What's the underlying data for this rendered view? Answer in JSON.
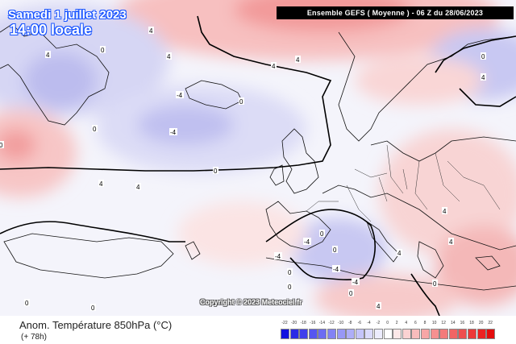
{
  "header": {
    "date": "Samedi 1 juillet 2023",
    "time": "14:00 locale",
    "run_info": "Ensemble GEFS  ( Moyenne )  - 06 Z du 28/06/2023"
  },
  "copyright": "Copyright © 2023 Meteociel.fr",
  "footer": {
    "title": "Anom. Température 850hPa (°C)",
    "subtitle": "(+ 78h)"
  },
  "legend": {
    "ticks": [
      "-22",
      "-20",
      "-18",
      "-16",
      "-14",
      "-12",
      "-10",
      "-8",
      "-6",
      "-4",
      "-2",
      "0",
      "2",
      "4",
      "6",
      "8",
      "10",
      "12",
      "14",
      "16",
      "18",
      "20",
      "22"
    ],
    "colors": [
      "#1212e0",
      "#2a2ae6",
      "#4040ec",
      "#5656f0",
      "#6c6cf2",
      "#8282f4",
      "#9898f6",
      "#aeaef8",
      "#c4c4fa",
      "#dadafc",
      "#ececfd",
      "#ffffff",
      "#fde8e8",
      "#fbd2d2",
      "#f9bcbc",
      "#f7a6a6",
      "#f59090",
      "#f37a7a",
      "#f16464",
      "#ef4e4e",
      "#ed3838",
      "#eb2222",
      "#e30c0c"
    ]
  },
  "contour_labels": [
    "4",
    "0",
    "4",
    "4",
    "4",
    "0",
    "0",
    "4",
    "4",
    "-4",
    "0",
    "4",
    "0",
    "4",
    "-4",
    "-4",
    "0",
    "-4",
    "0",
    "-4",
    "0",
    "4",
    "0",
    "4",
    "0",
    "0",
    "4",
    "0",
    "0",
    "4",
    "-4",
    "0"
  ]
}
